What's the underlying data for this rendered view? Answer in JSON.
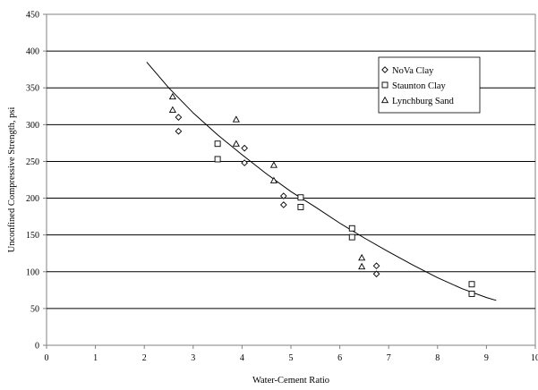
{
  "chart_data": {
    "type": "scatter",
    "xlabel": "Water-Cement Ratio",
    "ylabel": "Unconfined Compressive Strength, psi",
    "xlim": [
      0,
      10
    ],
    "ylim": [
      0,
      450
    ],
    "x_ticks": [
      "0",
      "1",
      "2",
      "3",
      "4",
      "5",
      "6",
      "7",
      "8",
      "9",
      "10"
    ],
    "y_ticks": [
      "0",
      "50",
      "100",
      "150",
      "200",
      "250",
      "300",
      "350",
      "400",
      "450"
    ],
    "grid": "horizontal",
    "legend_position": "top-right",
    "series": [
      {
        "name": "NoVa Clay",
        "marker": "diamond",
        "points": [
          [
            2.7,
            310
          ],
          [
            2.7,
            291
          ],
          [
            4.05,
            268
          ],
          [
            4.05,
            248
          ],
          [
            4.85,
            203
          ],
          [
            4.85,
            191
          ],
          [
            6.75,
            108
          ],
          [
            6.75,
            97
          ]
        ]
      },
      {
        "name": "Staunton Clay",
        "marker": "square",
        "points": [
          [
            3.5,
            274
          ],
          [
            3.5,
            253
          ],
          [
            5.2,
            201
          ],
          [
            5.2,
            188
          ],
          [
            6.25,
            159
          ],
          [
            6.25,
            147
          ],
          [
            8.7,
            83
          ],
          [
            8.7,
            70
          ]
        ]
      },
      {
        "name": "Lynchburg Sand",
        "marker": "triangle",
        "points": [
          [
            2.58,
            338
          ],
          [
            2.58,
            320
          ],
          [
            3.88,
            307
          ],
          [
            3.88,
            274
          ],
          [
            4.65,
            245
          ],
          [
            4.65,
            224
          ],
          [
            6.45,
            119
          ],
          [
            6.45,
            107
          ]
        ]
      }
    ],
    "trendline": {
      "points": [
        [
          2.05,
          385
        ],
        [
          2.5,
          350
        ],
        [
          3.0,
          316
        ],
        [
          3.5,
          286
        ],
        [
          4.0,
          259
        ],
        [
          4.5,
          233
        ],
        [
          5.0,
          209
        ],
        [
          5.5,
          188
        ],
        [
          6.0,
          166
        ],
        [
          6.5,
          146
        ],
        [
          7.0,
          127
        ],
        [
          7.5,
          109
        ],
        [
          8.0,
          92
        ],
        [
          8.5,
          77
        ],
        [
          9.0,
          65
        ],
        [
          9.2,
          61
        ]
      ]
    }
  }
}
